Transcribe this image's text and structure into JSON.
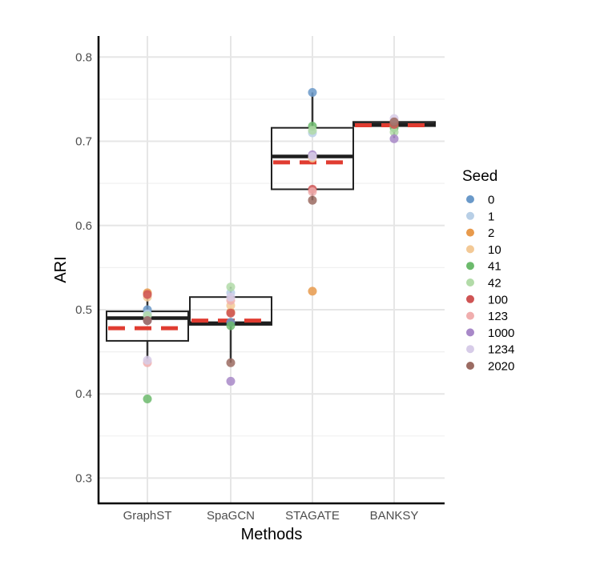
{
  "chart_data": {
    "type": "box",
    "xlabel": "Methods",
    "ylabel": "ARI",
    "categories": [
      "GraphST",
      "SpaGCN",
      "STAGATE",
      "BANKSY"
    ],
    "ylim": [
      0.27,
      0.825
    ],
    "yticks": [
      0.3,
      0.4,
      0.5,
      0.6,
      0.7,
      0.8
    ],
    "ytick_labels": [
      "0.3",
      "0.4",
      "0.5",
      "0.6",
      "0.7",
      "0.8"
    ],
    "grid": true,
    "legend": {
      "title": "Seed",
      "position": "right"
    },
    "mean_line_color": "#e03c31",
    "boxes": [
      {
        "category": "GraphST",
        "q1": 0.463,
        "median": 0.49,
        "q3": 0.498,
        "whisker_low": 0.438,
        "whisker_high": 0.52,
        "mean": 0.478
      },
      {
        "category": "SpaGCN",
        "q1": 0.482,
        "median": 0.484,
        "q3": 0.515,
        "whisker_low": 0.437,
        "whisker_high": 0.527,
        "mean": 0.487
      },
      {
        "category": "STAGATE",
        "q1": 0.643,
        "median": 0.682,
        "q3": 0.716,
        "whisker_low": 0.63,
        "whisker_high": 0.758,
        "mean": 0.675
      },
      {
        "category": "BANKSY",
        "q1": 0.718,
        "median": 0.72,
        "q3": 0.723,
        "whisker_low": 0.704,
        "whisker_high": 0.726,
        "mean": 0.719
      }
    ],
    "series": [
      {
        "name": "0",
        "color": "#6a99c9",
        "values": [
          0.5,
          0.485,
          0.758,
          0.722
        ]
      },
      {
        "name": "1",
        "color": "#b8cfe6",
        "values": [
          0.495,
          0.52,
          0.71,
          0.718
        ]
      },
      {
        "name": "2",
        "color": "#e89a4c",
        "values": [
          0.52,
          0.497,
          0.522,
          0.719
        ]
      },
      {
        "name": "10",
        "color": "#f3c996",
        "values": [
          0.515,
          0.505,
          0.68,
          0.723
        ]
      },
      {
        "name": "41",
        "color": "#6cba6c",
        "values": [
          0.394,
          0.481,
          0.718,
          0.716
        ]
      },
      {
        "name": "42",
        "color": "#b2dba8",
        "values": [
          0.493,
          0.527,
          0.713,
          0.711
        ]
      },
      {
        "name": "100",
        "color": "#cf5454",
        "values": [
          0.518,
          0.496,
          0.643,
          0.72
        ]
      },
      {
        "name": "123",
        "color": "#f0aeae",
        "values": [
          0.437,
          0.511,
          0.64,
          0.724
        ]
      },
      {
        "name": "1000",
        "color": "#a888c8",
        "values": [
          0.487,
          0.415,
          0.684,
          0.703
        ]
      },
      {
        "name": "1234",
        "color": "#d7cce8",
        "values": [
          0.44,
          0.515,
          0.682,
          0.727
        ]
      },
      {
        "name": "2020",
        "color": "#9b6b62",
        "values": [
          0.487,
          0.437,
          0.63,
          0.723
        ]
      }
    ]
  }
}
